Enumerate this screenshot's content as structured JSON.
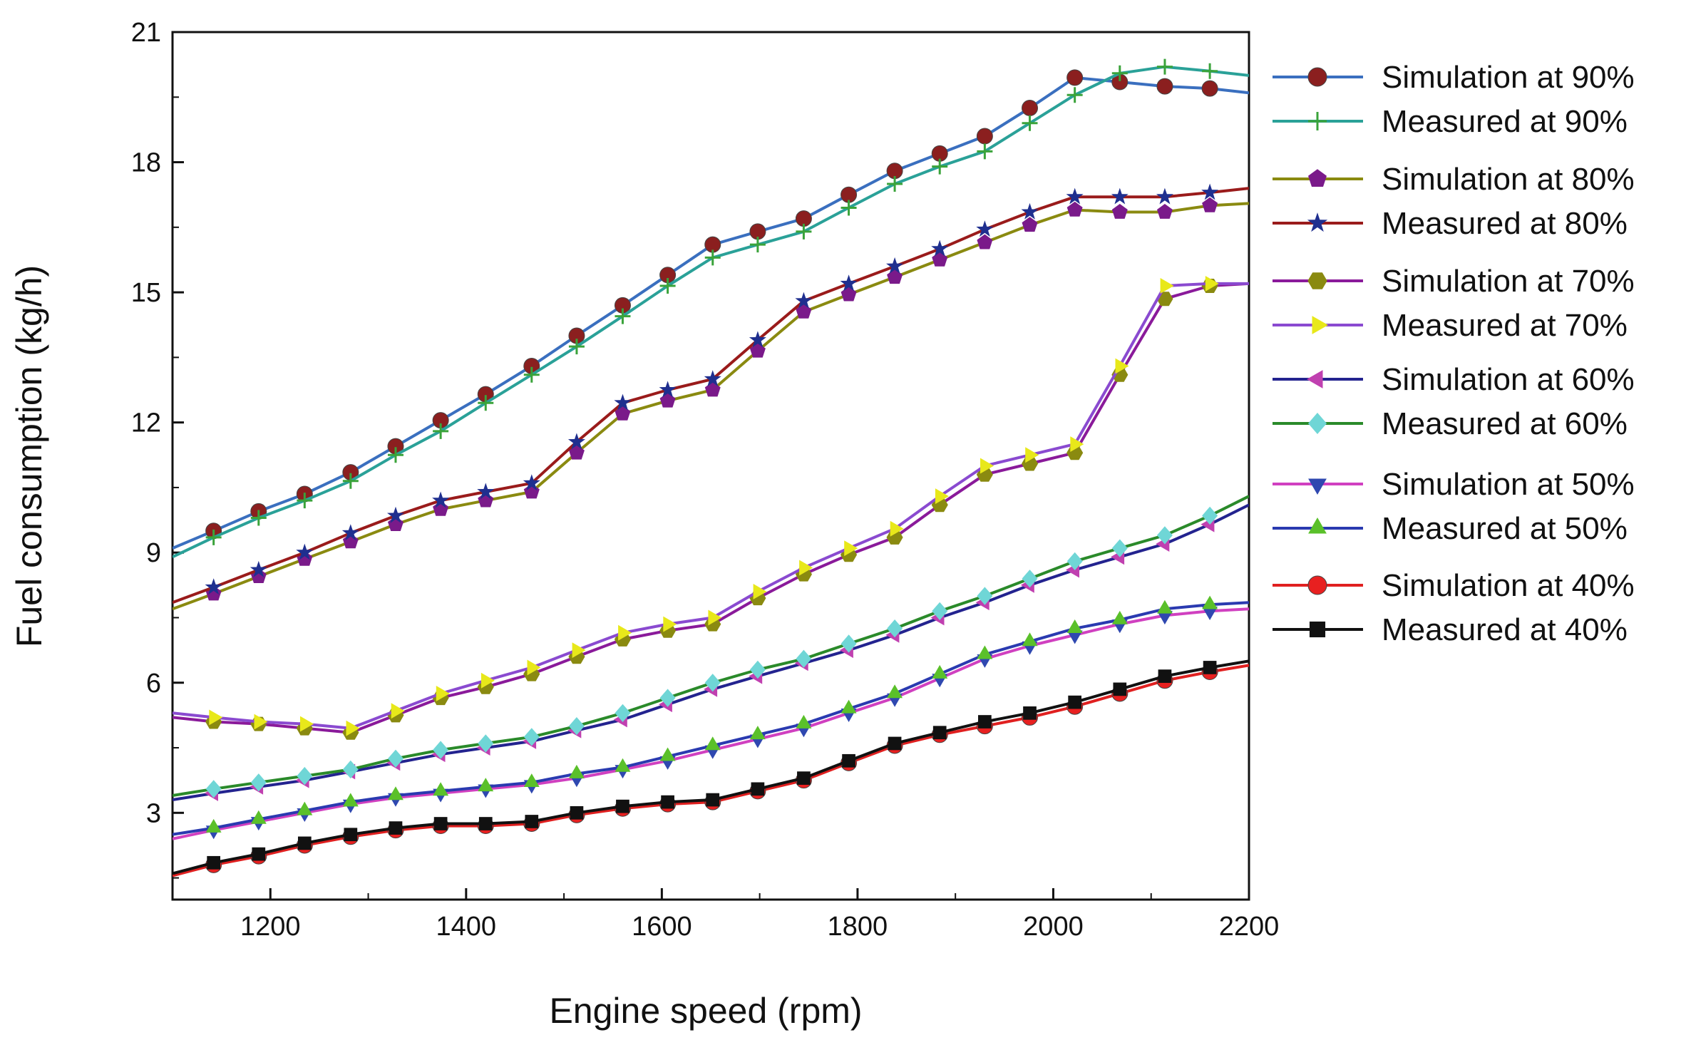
{
  "chart_data": {
    "type": "line",
    "title": "",
    "xlabel": "Engine speed (rpm)",
    "ylabel": "Fuel consumption (kg/h)",
    "xlim": [
      1100,
      2200
    ],
    "ylim": [
      1,
      21
    ],
    "xticks": [
      1200,
      1400,
      1600,
      1800,
      2000,
      2200
    ],
    "yticks": [
      3,
      6,
      9,
      12,
      15,
      18,
      21
    ],
    "x": [
      1100,
      1142,
      1188,
      1235,
      1282,
      1328,
      1374,
      1420,
      1467,
      1513,
      1560,
      1606,
      1652,
      1698,
      1745,
      1791,
      1838,
      1884,
      1930,
      1976,
      2022,
      2068,
      2114,
      2160,
      2200
    ],
    "series": [
      {
        "name": "Simulation at 90%",
        "color": "#3a6fbf",
        "marker": "circle",
        "marker_color": "#8b1f1f",
        "values": [
          9.1,
          9.5,
          9.95,
          10.35,
          10.85,
          11.45,
          12.05,
          12.65,
          13.3,
          14.0,
          14.7,
          15.4,
          16.1,
          16.4,
          16.7,
          17.25,
          17.8,
          18.2,
          18.6,
          19.25,
          19.95,
          19.85,
          19.75,
          19.7,
          19.6
        ]
      },
      {
        "name": "Measured at 90%",
        "color": "#2aa198",
        "marker": "plus",
        "marker_color": "#3aa33a",
        "values": [
          8.9,
          9.35,
          9.8,
          10.2,
          10.65,
          11.25,
          11.8,
          12.45,
          13.1,
          13.75,
          14.45,
          15.15,
          15.8,
          16.1,
          16.4,
          16.95,
          17.5,
          17.9,
          18.25,
          18.9,
          19.55,
          20.05,
          20.2,
          20.1,
          20.0
        ]
      },
      {
        "name": "Simulation at 80%",
        "color": "#8a8a10",
        "marker": "pentagon",
        "marker_color": "#7a1a8a",
        "values": [
          7.7,
          8.05,
          8.45,
          8.85,
          9.25,
          9.65,
          10.0,
          10.2,
          10.4,
          11.3,
          12.2,
          12.5,
          12.75,
          13.65,
          14.55,
          14.95,
          15.35,
          15.75,
          16.15,
          16.55,
          16.9,
          16.85,
          16.85,
          17.0,
          17.05
        ]
      },
      {
        "name": "Measured at 80%",
        "color": "#9a1b1b",
        "marker": "star",
        "marker_color": "#1f2f8f",
        "values": [
          7.85,
          8.2,
          8.6,
          9.0,
          9.45,
          9.85,
          10.2,
          10.4,
          10.6,
          11.55,
          12.45,
          12.75,
          13.0,
          13.9,
          14.8,
          15.2,
          15.6,
          16.0,
          16.45,
          16.85,
          17.2,
          17.2,
          17.2,
          17.3,
          17.4
        ]
      },
      {
        "name": "Simulation at 70%",
        "color": "#8a1a9a",
        "marker": "hexagon",
        "marker_color": "#8a8a10",
        "values": [
          5.2,
          5.1,
          5.05,
          4.95,
          4.85,
          5.25,
          5.65,
          5.9,
          6.2,
          6.6,
          7.0,
          7.2,
          7.35,
          7.95,
          8.5,
          8.95,
          9.35,
          10.1,
          10.8,
          11.05,
          11.3,
          13.1,
          14.85,
          15.15,
          15.2
        ]
      },
      {
        "name": "Measured at 70%",
        "color": "#8a4ad0",
        "marker": "triangle-right",
        "marker_color": "#e8e81a",
        "values": [
          5.3,
          5.2,
          5.1,
          5.05,
          4.95,
          5.35,
          5.75,
          6.05,
          6.35,
          6.75,
          7.15,
          7.35,
          7.5,
          8.1,
          8.65,
          9.1,
          9.55,
          10.3,
          11.0,
          11.25,
          11.5,
          13.3,
          15.15,
          15.2,
          15.2
        ]
      },
      {
        "name": "Simulation at 60%",
        "color": "#23238f",
        "marker": "triangle-left",
        "marker_color": "#c040b0",
        "values": [
          3.3,
          3.45,
          3.6,
          3.75,
          3.95,
          4.15,
          4.35,
          4.5,
          4.65,
          4.9,
          5.15,
          5.5,
          5.85,
          6.15,
          6.45,
          6.75,
          7.1,
          7.5,
          7.85,
          8.25,
          8.6,
          8.9,
          9.2,
          9.65,
          10.1
        ]
      },
      {
        "name": "Measured at 60%",
        "color": "#2a8a2a",
        "marker": "diamond",
        "marker_color": "#6fd6d6",
        "values": [
          3.4,
          3.55,
          3.7,
          3.85,
          4.0,
          4.25,
          4.45,
          4.6,
          4.75,
          5.0,
          5.3,
          5.65,
          6.0,
          6.3,
          6.55,
          6.9,
          7.25,
          7.65,
          8.0,
          8.4,
          8.8,
          9.1,
          9.4,
          9.85,
          10.3
        ]
      },
      {
        "name": "Simulation at 50%",
        "color": "#d040c0",
        "marker": "triangle-down",
        "marker_color": "#2f48b0",
        "values": [
          2.4,
          2.6,
          2.8,
          3.0,
          3.2,
          3.35,
          3.45,
          3.55,
          3.65,
          3.8,
          4.0,
          4.2,
          4.45,
          4.7,
          4.95,
          5.3,
          5.65,
          6.1,
          6.55,
          6.85,
          7.1,
          7.35,
          7.55,
          7.65,
          7.7
        ]
      },
      {
        "name": "Measured at 50%",
        "color": "#2a3ab0",
        "marker": "triangle-up",
        "marker_color": "#5ac02a",
        "values": [
          2.5,
          2.65,
          2.85,
          3.05,
          3.25,
          3.4,
          3.5,
          3.6,
          3.7,
          3.9,
          4.05,
          4.3,
          4.55,
          4.8,
          5.05,
          5.4,
          5.75,
          6.2,
          6.65,
          6.95,
          7.25,
          7.45,
          7.7,
          7.8,
          7.85
        ]
      },
      {
        "name": "Simulation at 40%",
        "color": "#e02020",
        "marker": "circle",
        "marker_color": "#e82020",
        "values": [
          1.55,
          1.8,
          2.0,
          2.25,
          2.45,
          2.6,
          2.7,
          2.7,
          2.75,
          2.95,
          3.1,
          3.2,
          3.25,
          3.5,
          3.75,
          4.15,
          4.55,
          4.8,
          5.0,
          5.2,
          5.45,
          5.75,
          6.05,
          6.25,
          6.4
        ]
      },
      {
        "name": "Measured at 40%",
        "color": "#111111",
        "marker": "square",
        "marker_color": "#111111",
        "values": [
          1.6,
          1.85,
          2.05,
          2.3,
          2.5,
          2.65,
          2.75,
          2.75,
          2.8,
          3.0,
          3.15,
          3.25,
          3.3,
          3.55,
          3.8,
          4.2,
          4.6,
          4.85,
          5.1,
          5.3,
          5.55,
          5.85,
          6.15,
          6.35,
          6.5
        ]
      }
    ],
    "legend": {
      "position": "right"
    },
    "grid": false
  }
}
